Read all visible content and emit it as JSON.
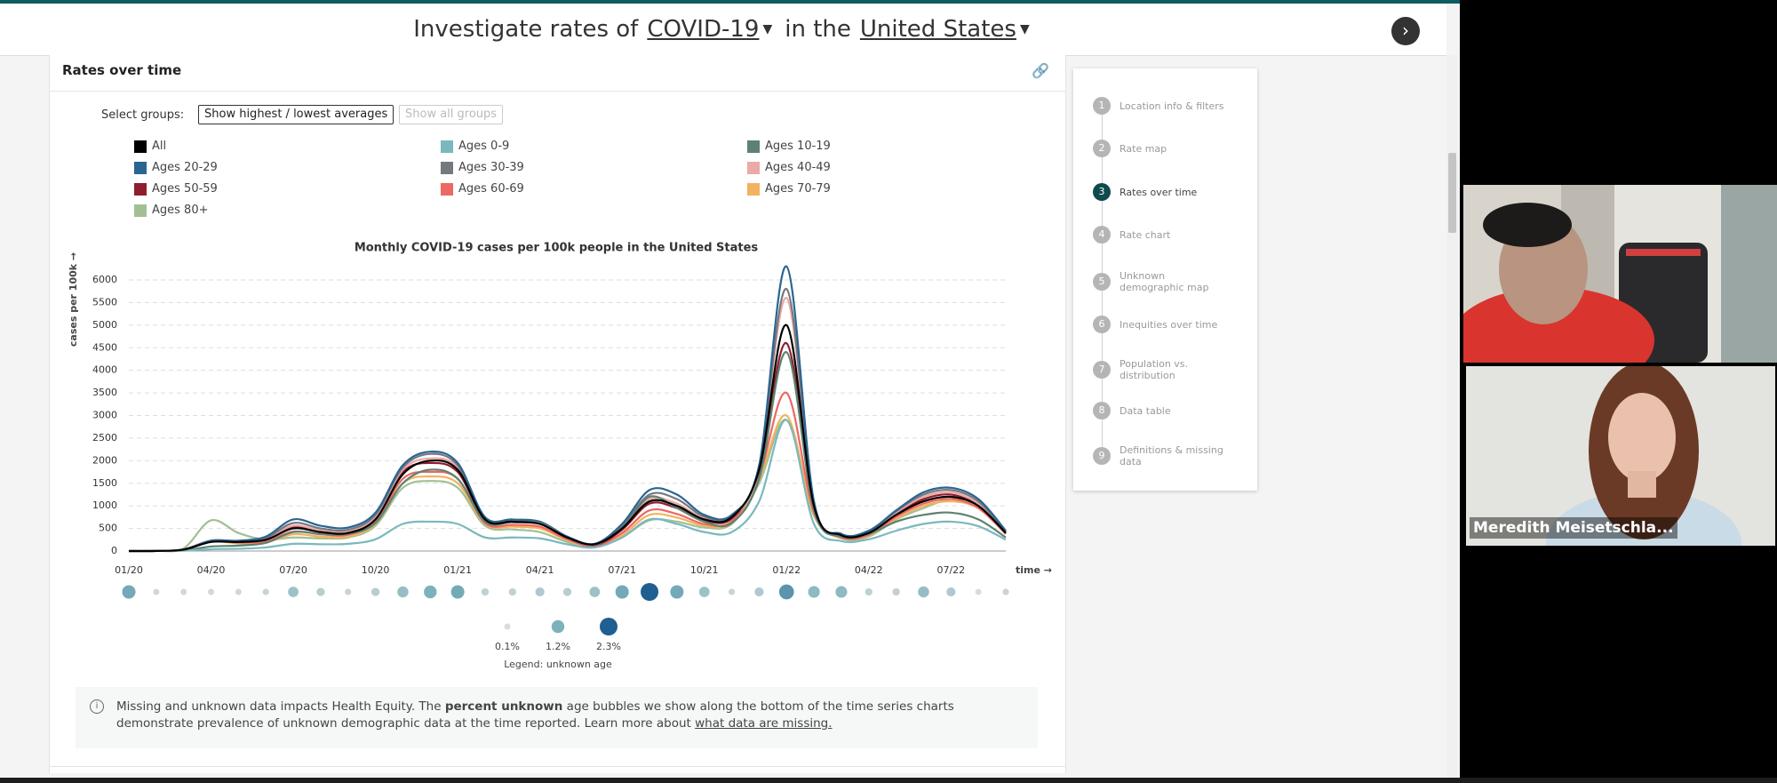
{
  "header": {
    "prefix": "Investigate rates of",
    "condition": "COVID-19",
    "connector": "in the",
    "location": "United States"
  },
  "card": {
    "title": "Rates over time",
    "select_label": "Select groups:",
    "buttons": [
      "Show highest / lowest averages",
      "Show all groups"
    ]
  },
  "chart_data": {
    "type": "line",
    "title": "Monthly COVID-19 cases per 100k people in the United States",
    "y_label": "cases per 100k →",
    "x_label": "time →",
    "categories": [
      "01/20",
      null,
      null,
      "04/20",
      null,
      null,
      "07/20",
      null,
      null,
      "10/20",
      null,
      null,
      "01/21",
      null,
      null,
      "04/21",
      null,
      null,
      "07/21",
      null,
      null,
      "10/21",
      null,
      null,
      "01/22",
      null,
      null,
      "04/22",
      null,
      null,
      "07/22",
      null,
      null
    ],
    "series": [
      {
        "name": "All",
        "color": "#000000",
        "values": [
          0,
          2,
          30,
          200,
          200,
          250,
          500,
          420,
          400,
          700,
          1700,
          2000,
          1800,
          700,
          650,
          600,
          300,
          150,
          500,
          1100,
          1000,
          700,
          750,
          1800,
          5000,
          1000,
          350,
          400,
          800,
          1100,
          1200,
          1000,
          400
        ]
      },
      {
        "name": "Ages 0-9",
        "color": "#7ab8bd",
        "values": [
          0,
          1,
          8,
          40,
          50,
          80,
          160,
          150,
          160,
          260,
          600,
          650,
          600,
          300,
          300,
          280,
          150,
          80,
          300,
          700,
          600,
          420,
          420,
          1100,
          2900,
          600,
          220,
          260,
          450,
          600,
          650,
          550,
          250
        ]
      },
      {
        "name": "Ages 10-19",
        "color": "#5d8272",
        "values": [
          0,
          1,
          15,
          100,
          120,
          180,
          420,
          380,
          380,
          620,
          1500,
          1800,
          1600,
          650,
          640,
          620,
          300,
          150,
          520,
          1200,
          950,
          650,
          620,
          1600,
          4400,
          900,
          320,
          380,
          650,
          800,
          850,
          700,
          300
        ]
      },
      {
        "name": "Ages 20-29",
        "color": "#2a6591",
        "values": [
          0,
          2,
          30,
          230,
          230,
          320,
          700,
          560,
          520,
          850,
          1900,
          2200,
          1950,
          750,
          700,
          650,
          320,
          160,
          600,
          1350,
          1250,
          800,
          800,
          1900,
          6300,
          1100,
          380,
          450,
          900,
          1300,
          1400,
          1150,
          450
        ]
      },
      {
        "name": "Ages 30-39",
        "color": "#767880",
        "values": [
          0,
          2,
          30,
          220,
          220,
          290,
          620,
          500,
          470,
          800,
          1850,
          2150,
          1900,
          720,
          680,
          630,
          310,
          150,
          560,
          1250,
          1150,
          760,
          780,
          1850,
          5800,
          1050,
          360,
          430,
          880,
          1250,
          1350,
          1100,
          430
        ]
      },
      {
        "name": "Ages 40-49",
        "color": "#eaaaa5",
        "values": [
          0,
          2,
          30,
          230,
          220,
          280,
          560,
          460,
          440,
          760,
          1800,
          2050,
          1850,
          700,
          660,
          620,
          300,
          140,
          520,
          1150,
          1050,
          720,
          760,
          1800,
          5600,
          1000,
          350,
          420,
          850,
          1200,
          1300,
          1050,
          420
        ]
      },
      {
        "name": "Ages 50-59",
        "color": "#8f1d2e",
        "values": [
          0,
          2,
          35,
          230,
          210,
          260,
          520,
          430,
          410,
          720,
          1750,
          1950,
          1750,
          680,
          640,
          600,
          290,
          130,
          470,
          1050,
          950,
          680,
          720,
          1750,
          4600,
          950,
          330,
          400,
          820,
          1150,
          1250,
          1000,
          400
        ]
      },
      {
        "name": "Ages 60-69",
        "color": "#ed6763",
        "values": [
          0,
          2,
          35,
          220,
          190,
          220,
          430,
          370,
          360,
          650,
          1600,
          1750,
          1600,
          620,
          580,
          540,
          260,
          110,
          400,
          900,
          820,
          600,
          660,
          1650,
          3500,
          850,
          300,
          360,
          760,
          1050,
          1150,
          950,
          380
        ]
      },
      {
        "name": "Ages 70-79",
        "color": "#f2b25f",
        "values": [
          0,
          2,
          35,
          210,
          170,
          190,
          370,
          320,
          320,
          600,
          1500,
          1650,
          1500,
          600,
          540,
          500,
          240,
          100,
          350,
          800,
          740,
          560,
          620,
          1600,
          3000,
          800,
          290,
          340,
          720,
          1000,
          1100,
          950,
          380
        ]
      },
      {
        "name": "Ages 80+",
        "color": "#a1bf93",
        "values": [
          0,
          5,
          60,
          680,
          400,
          250,
          300,
          280,
          300,
          560,
          1400,
          1550,
          1400,
          560,
          480,
          420,
          200,
          90,
          300,
          680,
          650,
          520,
          600,
          1500,
          2900,
          780,
          280,
          320,
          700,
          950,
          1150,
          1050,
          420
        ]
      }
    ],
    "ylim": [
      0,
      6500
    ],
    "yticks": [
      0,
      500,
      1000,
      1500,
      2000,
      2500,
      3000,
      3500,
      4000,
      4500,
      5000,
      5500,
      6000
    ],
    "grid": true
  },
  "bubbles": {
    "values": [
      1.3,
      0.2,
      0.2,
      0.2,
      0.2,
      0.3,
      0.8,
      0.5,
      0.3,
      0.5,
      0.9,
      1.2,
      1.3,
      0.4,
      0.4,
      0.6,
      0.5,
      0.8,
      1.3,
      2.3,
      1.3,
      0.8,
      0.3,
      0.6,
      1.6,
      1.0,
      1.0,
      0.4,
      0.4,
      0.9,
      0.6,
      0.1,
      0.3
    ],
    "legend_values": [
      0.1,
      1.2,
      2.3
    ],
    "legend_value_labels": [
      "0.1%",
      "1.2%",
      "2.3%"
    ],
    "legend_title": "Legend: unknown age"
  },
  "info": {
    "text_1": "Missing and unknown data impacts Health Equity. The ",
    "bold": "percent unknown",
    "text_2": " age bubbles we show along the bottom of the time series charts demonstrate prevalence of unknown demographic data at the time reported. Learn more about ",
    "link": "what data are missing."
  },
  "nav": {
    "active": 3,
    "steps": [
      {
        "number": 1,
        "label": "Location info & filters"
      },
      {
        "number": 2,
        "label": "Rate map"
      },
      {
        "number": 3,
        "label": "Rates over time"
      },
      {
        "number": 4,
        "label": "Rate chart"
      },
      {
        "number": 5,
        "label": "Unknown demographic map"
      },
      {
        "number": 6,
        "label": "Inequities over time"
      },
      {
        "number": 7,
        "label": "Population vs. distribution"
      },
      {
        "number": 8,
        "label": "Data table"
      },
      {
        "number": 9,
        "label": "Definitions & missing data"
      }
    ]
  },
  "video": {
    "name": "Meredith Meisetschla..."
  }
}
